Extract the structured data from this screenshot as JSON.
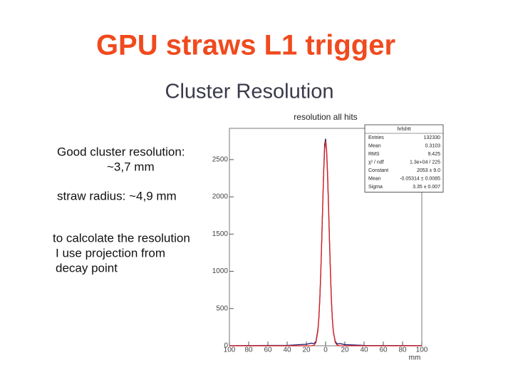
{
  "slide": {
    "title": "GPU straws L1 trigger",
    "subtitle": "Cluster Resolution",
    "notes": [
      "Good cluster resolution:",
      "~3,7 mm",
      "straw radius: ~4,9 mm",
      "to calcolate the resolution",
      "I use projection from",
      "decay point"
    ]
  },
  "chart_data": {
    "type": "line",
    "title": "resolution all hits",
    "xlabel": "mm",
    "x": [
      -100,
      -40,
      -20,
      -15,
      -12,
      -10,
      -8,
      -7,
      -6,
      -5,
      -4,
      -3,
      -2,
      -1,
      0,
      1,
      2,
      3,
      4,
      5,
      6,
      7,
      8,
      10,
      12,
      15,
      20,
      40,
      100
    ],
    "series": [
      {
        "color": "#1a1a6e",
        "values": [
          2,
          5,
          20,
          35,
          30,
          60,
          220,
          380,
          640,
          1000,
          1420,
          1900,
          2350,
          2700,
          2780,
          2620,
          2300,
          1880,
          1420,
          1010,
          610,
          360,
          190,
          60,
          25,
          30,
          15,
          5,
          2
        ]
      },
      {
        "color": "#e02020",
        "values": [
          0,
          0,
          0,
          0,
          8,
          46,
          202,
          372,
          632,
          990,
          1432,
          1905,
          2336,
          2640,
          2750,
          2640,
          2336,
          1905,
          1432,
          990,
          632,
          372,
          202,
          46,
          8,
          0,
          0,
          0,
          0
        ]
      }
    ],
    "xlim": [
      -100,
      100
    ],
    "xticks": [
      {
        "value": -100,
        "label": "100"
      },
      {
        "value": -80,
        "label": "80"
      },
      {
        "value": -60,
        "label": "60"
      },
      {
        "value": -40,
        "label": "40"
      },
      {
        "value": -20,
        "label": "20"
      },
      0,
      20,
      40,
      60,
      80,
      100
    ],
    "ylim": [
      0,
      2920
    ],
    "yticks": [
      0,
      500,
      1000,
      1500,
      2000,
      2500
    ],
    "stats": {
      "name": "hrlshtt",
      "rows": [
        [
          "Entries",
          "132330"
        ],
        [
          "Mean",
          "0.3103"
        ],
        [
          "RMS",
          "9.425"
        ],
        [
          "χ² / ndf",
          "1.3e+04 / 225"
        ],
        [
          "Constant",
          "2053 ± 9.0"
        ],
        [
          "Mean",
          "-0.05314 ± 0.0085"
        ],
        [
          "Sigma",
          "3.35 ± 0.007"
        ]
      ]
    }
  }
}
